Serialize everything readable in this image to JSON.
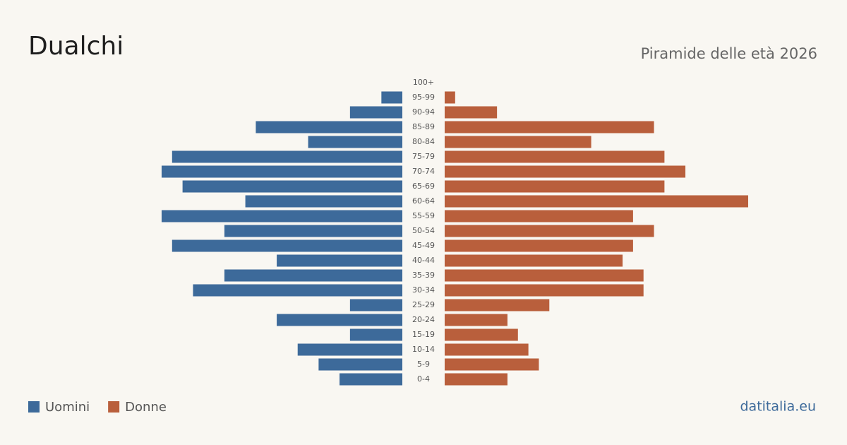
{
  "chart_data": {
    "type": "pyramid",
    "title": "Dualchi",
    "subtitle": "Piramide delle età 2026",
    "source": "datitalia.eu",
    "categories": [
      "100+",
      "95-99",
      "90-94",
      "85-89",
      "80-84",
      "75-79",
      "70-74",
      "65-69",
      "60-64",
      "55-59",
      "50-54",
      "45-49",
      "40-44",
      "35-39",
      "30-34",
      "25-29",
      "20-24",
      "15-19",
      "10-14",
      "5-9",
      "0-4"
    ],
    "series": [
      {
        "name": "Uomini",
        "color": "#3d6a9a",
        "values": [
          0,
          2,
          5,
          14,
          9,
          22,
          23,
          21,
          15,
          23,
          17,
          22,
          12,
          17,
          20,
          5,
          12,
          5,
          10,
          8,
          6
        ]
      },
      {
        "name": "Donne",
        "color": "#b95f3c",
        "values": [
          0,
          1,
          5,
          20,
          14,
          21,
          23,
          21,
          29,
          18,
          20,
          18,
          17,
          19,
          19,
          10,
          6,
          7,
          8,
          9,
          6
        ]
      }
    ]
  }
}
